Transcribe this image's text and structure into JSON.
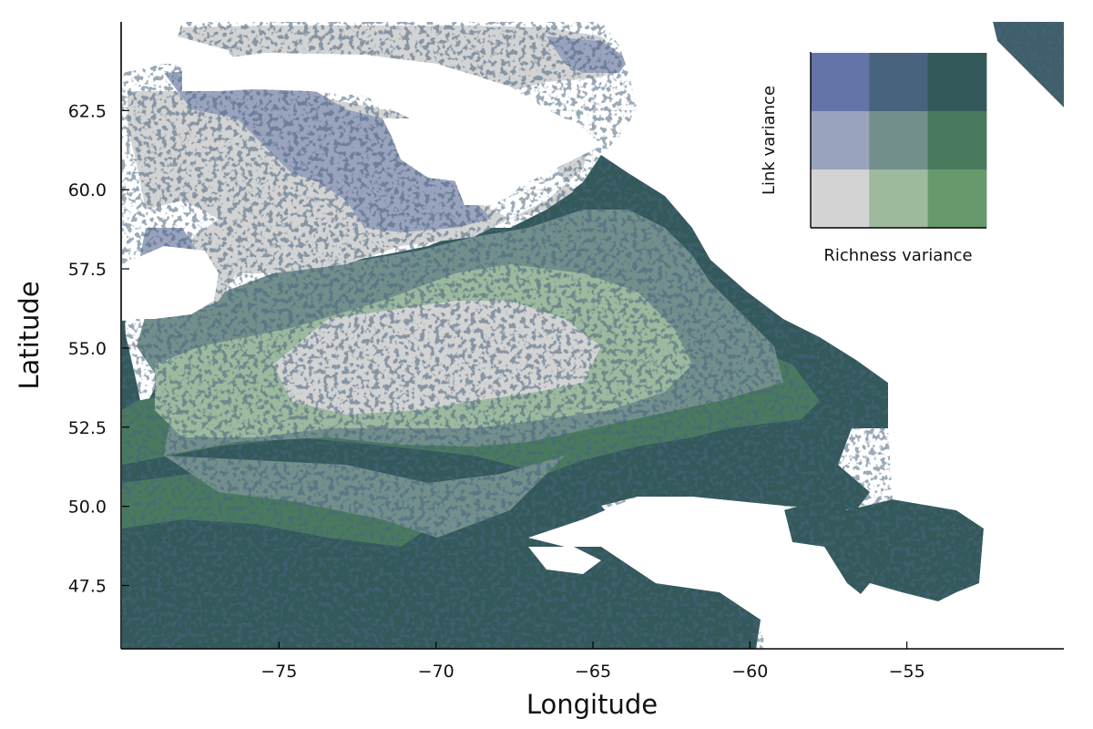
{
  "chart_data": {
    "type": "heatmap",
    "title": "",
    "xlabel": "Longitude",
    "ylabel": "Latitude",
    "xlim": [
      -80,
      -50
    ],
    "ylim": [
      45.5,
      65.3
    ],
    "xticks": [
      -75,
      -70,
      -65,
      -60,
      -55
    ],
    "xtick_labels": [
      "−75",
      "−70",
      "−65",
      "−60",
      "−55"
    ],
    "yticks": [
      47.5,
      50.0,
      52.5,
      55.0,
      57.5,
      60.0,
      62.5
    ],
    "ytick_labels": [
      "47.5",
      "50.0",
      "52.5",
      "55.0",
      "57.5",
      "60.0",
      "62.5"
    ],
    "grid": true,
    "colors": {
      "background": "#ffffff",
      "grid": "#e6e6e6",
      "axis": "#000000"
    },
    "legend": {
      "placement": "top-right",
      "xlabel": "Richness variance",
      "ylabel": "Link variance",
      "grid_colors": [
        [
          "#6474a8",
          "#48637e",
          "#33595a"
        ],
        [
          "#9aa3be",
          "#728f8c",
          "#4a7a5e"
        ],
        [
          "#d3d3d3",
          "#9db99e",
          "#68996c"
        ]
      ]
    }
  }
}
